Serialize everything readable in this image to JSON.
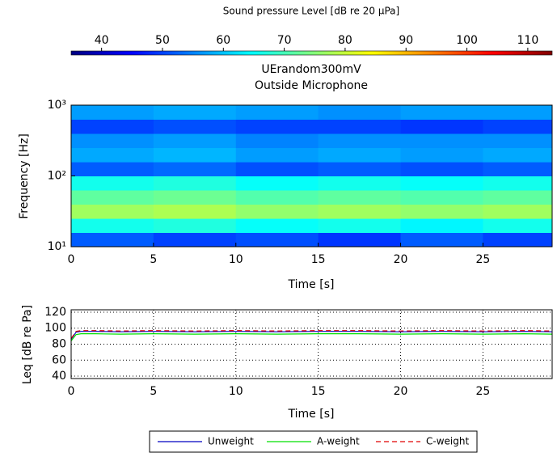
{
  "chart_data": [
    {
      "type": "heatmap",
      "colorbar_label": "Sound pressure Level   [dB  re  20 μPa]",
      "clim": [
        35,
        114
      ],
      "cticks": [
        40,
        50,
        60,
        70,
        80,
        90,
        100,
        110
      ],
      "colormap": "jet",
      "title": "UErandom300mV",
      "subtitle": "Outside Microphone",
      "xlabel": "Time   [s]",
      "ylabel": "Frequency   [Hz]",
      "xlim": [
        0,
        29.2
      ],
      "xticks": [
        0,
        5,
        10,
        15,
        20,
        25
      ],
      "ylim": [
        10,
        1000
      ],
      "yscale": "log",
      "yticks": [
        {
          "value": 10,
          "label": "10¹"
        },
        {
          "value": 100,
          "label": "10²"
        },
        {
          "value": 1000,
          "label": "10³"
        }
      ],
      "x": [
        0,
        5,
        10,
        15,
        20,
        25,
        29.2
      ],
      "y": [
        10,
        15.85,
        25.1,
        39.8,
        63.1,
        100,
        158,
        251,
        398,
        631,
        1000
      ],
      "values": [
        [
          52,
          50,
          51,
          49,
          52,
          50
        ],
        [
          66,
          67,
          65,
          66,
          64,
          66
        ],
        [
          77,
          78,
          76,
          77,
          76,
          77
        ],
        [
          72,
          73,
          71,
          72,
          71,
          72
        ],
        [
          66,
          67,
          65,
          66,
          65,
          66
        ],
        [
          52,
          53,
          51,
          52,
          51,
          52
        ],
        [
          58,
          59,
          57,
          58,
          57,
          58
        ],
        [
          56,
          57,
          55,
          56,
          56,
          56
        ],
        [
          50,
          51,
          50,
          50,
          49,
          50
        ],
        [
          57,
          58,
          57,
          56,
          57,
          57
        ]
      ]
    },
    {
      "type": "line",
      "xlabel": "Time   [s]",
      "ylabel": "Leq   [dB re Pa]",
      "xlim": [
        0,
        29.2
      ],
      "xticks": [
        0,
        5,
        10,
        15,
        20,
        25
      ],
      "ylim": [
        37,
        123
      ],
      "yticks": [
        40,
        60,
        80,
        100,
        120
      ],
      "grid": true,
      "x": [
        0,
        0.3,
        0.6,
        1.5,
        3,
        5,
        7.5,
        10,
        12.5,
        15,
        17.5,
        20,
        22.5,
        25,
        27.5,
        29.2
      ],
      "series": [
        {
          "name": "Unweight",
          "color": "#0000c0",
          "dash": false,
          "values": [
            86,
            95,
            96,
            96,
            95.5,
            96,
            95.5,
            96,
            95.5,
            96,
            96,
            95.5,
            96,
            95.5,
            96,
            95.5
          ]
        },
        {
          "name": "A-weight",
          "color": "#00e000",
          "dash": false,
          "values": [
            84,
            92,
            93,
            93,
            92.5,
            93,
            92.5,
            93,
            92.5,
            93,
            93,
            92.5,
            93,
            92.5,
            93,
            92.5
          ]
        },
        {
          "name": "C-weight",
          "color": "#e00000",
          "dash": true,
          "values": [
            87,
            96,
            97,
            97,
            96.5,
            97,
            96.5,
            97,
            96.5,
            97,
            97,
            96.5,
            97,
            96.5,
            97,
            96.5
          ]
        }
      ]
    }
  ]
}
